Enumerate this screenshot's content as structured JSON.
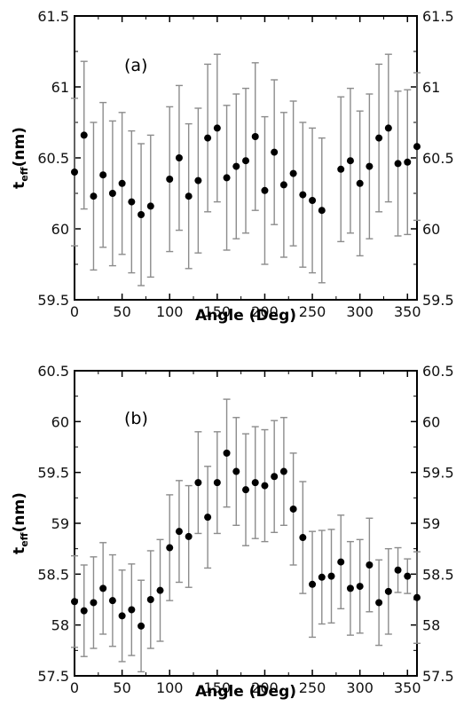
{
  "chart_data": [
    {
      "type": "scatter",
      "panel_label": "(a)",
      "xlabel": "Angle (Deg)",
      "ylabel_main": "t",
      "ylabel_sub": "eff",
      "ylabel_unit": "(nm)",
      "xlim": [
        0,
        360
      ],
      "ylim": [
        59.5,
        61.5
      ],
      "xticks": [
        0,
        50,
        100,
        150,
        200,
        250,
        300,
        350
      ],
      "yticks": [
        59.5,
        60,
        60.5,
        61,
        61.5
      ],
      "ytick_labels": [
        "59.5",
        "60",
        "60.5",
        "61",
        "61.5"
      ],
      "grid": false,
      "mirror_right_axis": true,
      "points": [
        {
          "x": 0,
          "y": 60.4,
          "err": 0.52
        },
        {
          "x": 10,
          "y": 60.66,
          "err": 0.52
        },
        {
          "x": 20,
          "y": 60.23,
          "err": 0.52
        },
        {
          "x": 30,
          "y": 60.38,
          "err": 0.51
        },
        {
          "x": 40,
          "y": 60.25,
          "err": 0.51
        },
        {
          "x": 50,
          "y": 60.32,
          "err": 0.5
        },
        {
          "x": 60,
          "y": 60.19,
          "err": 0.5
        },
        {
          "x": 70,
          "y": 60.1,
          "err": 0.5
        },
        {
          "x": 80,
          "y": 60.16,
          "err": 0.5
        },
        {
          "x": 100,
          "y": 60.35,
          "err": 0.51
        },
        {
          "x": 110,
          "y": 60.5,
          "err": 0.51
        },
        {
          "x": 120,
          "y": 60.23,
          "err": 0.51
        },
        {
          "x": 130,
          "y": 60.34,
          "err": 0.51
        },
        {
          "x": 140,
          "y": 60.64,
          "err": 0.52
        },
        {
          "x": 150,
          "y": 60.71,
          "err": 0.52
        },
        {
          "x": 160,
          "y": 60.36,
          "err": 0.51
        },
        {
          "x": 170,
          "y": 60.44,
          "err": 0.51
        },
        {
          "x": 180,
          "y": 60.48,
          "err": 0.51
        },
        {
          "x": 190,
          "y": 60.65,
          "err": 0.52
        },
        {
          "x": 200,
          "y": 60.27,
          "err": 0.52
        },
        {
          "x": 210,
          "y": 60.54,
          "err": 0.51
        },
        {
          "x": 220,
          "y": 60.31,
          "err": 0.51
        },
        {
          "x": 230,
          "y": 60.39,
          "err": 0.51
        },
        {
          "x": 240,
          "y": 60.24,
          "err": 0.51
        },
        {
          "x": 250,
          "y": 60.2,
          "err": 0.51
        },
        {
          "x": 260,
          "y": 60.13,
          "err": 0.51
        },
        {
          "x": 280,
          "y": 60.42,
          "err": 0.51
        },
        {
          "x": 290,
          "y": 60.48,
          "err": 0.51
        },
        {
          "x": 300,
          "y": 60.32,
          "err": 0.51
        },
        {
          "x": 310,
          "y": 60.44,
          "err": 0.51
        },
        {
          "x": 320,
          "y": 60.64,
          "err": 0.52
        },
        {
          "x": 330,
          "y": 60.71,
          "err": 0.52
        },
        {
          "x": 340,
          "y": 60.46,
          "err": 0.51
        },
        {
          "x": 350,
          "y": 60.47,
          "err": 0.51
        },
        {
          "x": 360,
          "y": 60.58,
          "err": 0.52
        }
      ]
    },
    {
      "type": "scatter",
      "panel_label": "(b)",
      "xlabel": "Angle (Deg)",
      "ylabel_main": "t",
      "ylabel_sub": "eff",
      "ylabel_unit": "(nm)",
      "xlim": [
        0,
        360
      ],
      "ylim": [
        57.5,
        60.5
      ],
      "xticks": [
        0,
        50,
        100,
        150,
        200,
        250,
        300,
        350
      ],
      "yticks": [
        57.5,
        58,
        58.5,
        59,
        59.5,
        60,
        60.5
      ],
      "ytick_labels": [
        "57.5",
        "58",
        "58.5",
        "59",
        "59.5",
        "60",
        "60.5"
      ],
      "grid": false,
      "mirror_right_axis": true,
      "points": [
        {
          "x": 0,
          "y": 58.23,
          "err": 0.45
        },
        {
          "x": 10,
          "y": 58.14,
          "err": 0.45
        },
        {
          "x": 20,
          "y": 58.22,
          "err": 0.45
        },
        {
          "x": 30,
          "y": 58.36,
          "err": 0.45
        },
        {
          "x": 40,
          "y": 58.24,
          "err": 0.45
        },
        {
          "x": 50,
          "y": 58.09,
          "err": 0.45
        },
        {
          "x": 60,
          "y": 58.15,
          "err": 0.45
        },
        {
          "x": 70,
          "y": 57.99,
          "err": 0.45
        },
        {
          "x": 80,
          "y": 58.25,
          "err": 0.48
        },
        {
          "x": 90,
          "y": 58.34,
          "err": 0.5
        },
        {
          "x": 100,
          "y": 58.76,
          "err": 0.52
        },
        {
          "x": 110,
          "y": 58.92,
          "err": 0.5
        },
        {
          "x": 120,
          "y": 58.87,
          "err": 0.5
        },
        {
          "x": 130,
          "y": 59.4,
          "err": 0.5
        },
        {
          "x": 140,
          "y": 59.06,
          "err": 0.5
        },
        {
          "x": 150,
          "y": 59.4,
          "err": 0.5
        },
        {
          "x": 160,
          "y": 59.69,
          "err": 0.53
        },
        {
          "x": 170,
          "y": 59.51,
          "err": 0.53
        },
        {
          "x": 180,
          "y": 59.33,
          "err": 0.55
        },
        {
          "x": 190,
          "y": 59.4,
          "err": 0.55
        },
        {
          "x": 200,
          "y": 59.37,
          "err": 0.55
        },
        {
          "x": 210,
          "y": 59.46,
          "err": 0.55
        },
        {
          "x": 220,
          "y": 59.51,
          "err": 0.53
        },
        {
          "x": 230,
          "y": 59.14,
          "err": 0.55
        },
        {
          "x": 240,
          "y": 58.86,
          "err": 0.55
        },
        {
          "x": 250,
          "y": 58.4,
          "err": 0.52
        },
        {
          "x": 260,
          "y": 58.47,
          "err": 0.46
        },
        {
          "x": 270,
          "y": 58.48,
          "err": 0.46
        },
        {
          "x": 280,
          "y": 58.62,
          "err": 0.46
        },
        {
          "x": 290,
          "y": 58.36,
          "err": 0.46
        },
        {
          "x": 300,
          "y": 58.38,
          "err": 0.46
        },
        {
          "x": 310,
          "y": 58.59,
          "err": 0.46
        },
        {
          "x": 320,
          "y": 58.22,
          "err": 0.42
        },
        {
          "x": 330,
          "y": 58.33,
          "err": 0.42
        },
        {
          "x": 340,
          "y": 58.54,
          "err": 0.22
        },
        {
          "x": 350,
          "y": 58.48,
          "err": 0.17
        },
        {
          "x": 360,
          "y": 58.27,
          "err": 0.45
        }
      ]
    }
  ]
}
